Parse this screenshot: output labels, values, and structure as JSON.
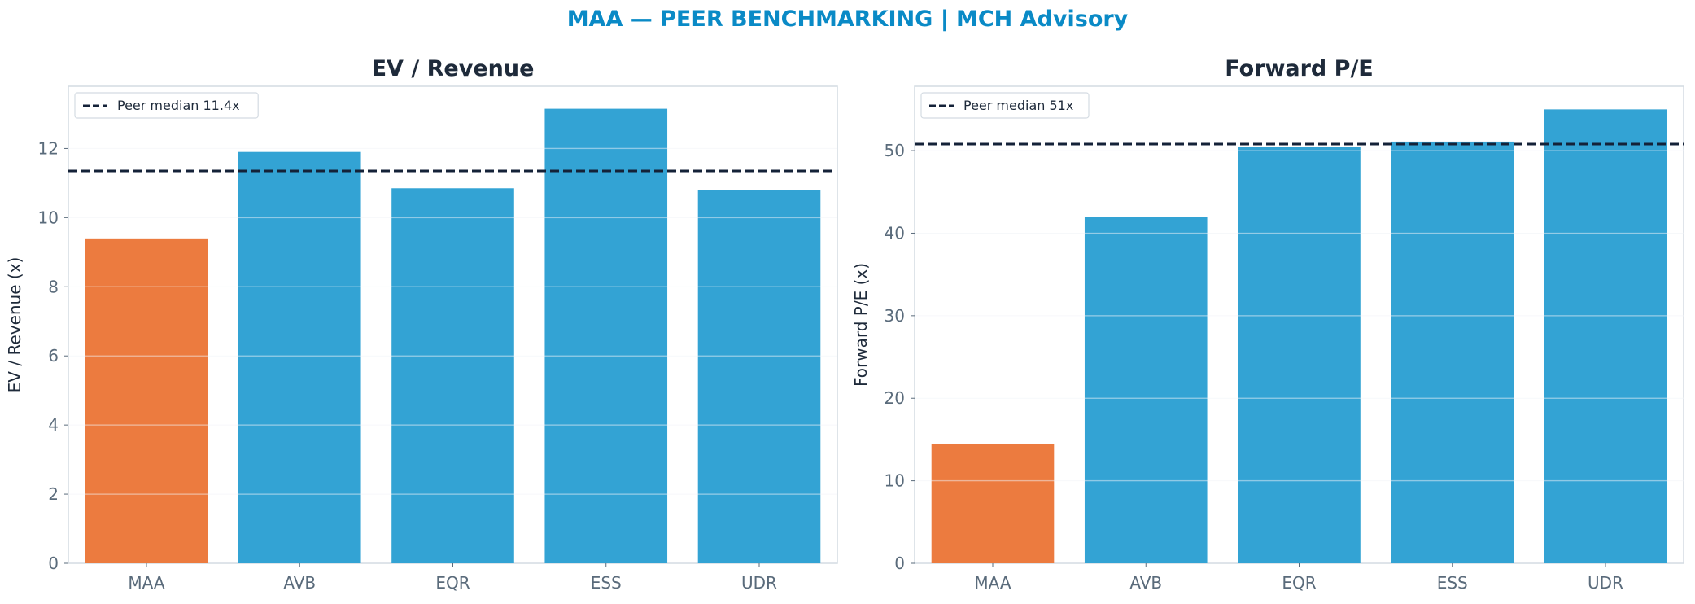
{
  "suptitle": "MAA — PEER BENCHMARKING | MCH Advisory",
  "colors": {
    "highlight": "#ec7b3f",
    "peer": "#33a3d4",
    "median_line": "#142238",
    "title": "#0a8ac6"
  },
  "chart_data": [
    {
      "type": "bar",
      "title": "EV / Revenue",
      "ylabel": "EV / Revenue (x)",
      "xlabel": "",
      "categories": [
        "MAA",
        "AVB",
        "EQR",
        "ESS",
        "UDR"
      ],
      "values": [
        9.4,
        11.9,
        10.85,
        13.15,
        10.8
      ],
      "highlight_index": 0,
      "ylim": [
        0,
        13.8
      ],
      "yticks": [
        0,
        2,
        4,
        6,
        8,
        10,
        12
      ],
      "reference_line": {
        "value": 11.35,
        "label": "Peer median 11.4x",
        "style": "dashed"
      },
      "legend_position": "top-left",
      "grid": "horizontal"
    },
    {
      "type": "bar",
      "title": "Forward P/E",
      "ylabel": "Forward P/E (x)",
      "xlabel": "",
      "categories": [
        "MAA",
        "AVB",
        "EQR",
        "ESS",
        "UDR"
      ],
      "values": [
        14.5,
        42.0,
        50.5,
        51.1,
        55.0
      ],
      "highlight_index": 0,
      "ylim": [
        0,
        57.8
      ],
      "yticks": [
        0,
        10,
        20,
        30,
        40,
        50
      ],
      "reference_line": {
        "value": 50.8,
        "label": "Peer median 51x",
        "style": "dashed"
      },
      "legend_position": "top-left",
      "grid": "horizontal"
    }
  ]
}
